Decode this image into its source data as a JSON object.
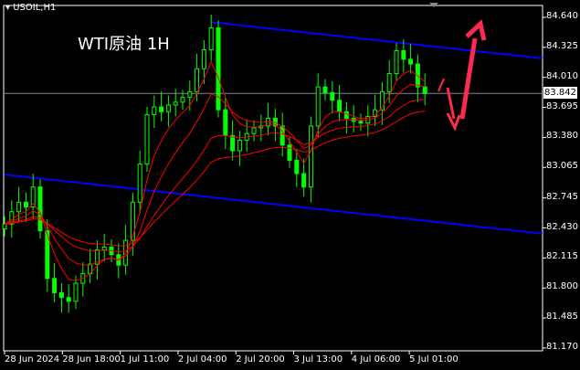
{
  "header": {
    "symbol": "USOIL,H1"
  },
  "chart_data": {
    "type": "candlestick",
    "title": "WTI原油 1H",
    "ylim": [
      81.17,
      84.8
    ],
    "yticks": [
      "84.640",
      "84.325",
      "84.010",
      "83.695",
      "83.380",
      "83.065",
      "82.745",
      "82.430",
      "82.115",
      "81.800",
      "81.485",
      "81.170"
    ],
    "xticks": [
      "28 Jun 2024",
      "28 Jun 18:00",
      "1 Jul 11:00",
      "2 Jul 04:00",
      "2 Jul 20:00",
      "3 Jul 13:00",
      "4 Jul 06:00",
      "5 Jul 01:00"
    ],
    "current_price": "83.842",
    "closes": [
      82.47,
      82.6,
      82.7,
      82.65,
      82.86,
      82.4,
      81.9,
      81.75,
      81.7,
      81.66,
      81.85,
      81.95,
      82.05,
      82.2,
      82.23,
      82.15,
      82.04,
      82.3,
      82.7,
      83.1,
      83.62,
      83.7,
      83.65,
      83.72,
      83.75,
      83.8,
      83.86,
      84.1,
      84.3,
      84.53,
      83.67,
      83.4,
      83.24,
      83.35,
      83.42,
      83.48,
      83.5,
      83.58,
      83.5,
      83.3,
      83.14,
      83.0,
      82.86,
      83.5,
      83.91,
      83.85,
      83.77,
      83.65,
      83.58,
      83.55,
      83.53,
      83.6,
      83.67,
      83.86,
      84.05,
      84.29,
      84.2,
      84.15,
      83.91,
      83.84
    ],
    "moving_averages": [
      5,
      10,
      20,
      30
    ],
    "trendlines": [
      {
        "from": [
          29,
          84.59
        ],
        "to": [
          75.5,
          84.21
        ]
      },
      {
        "from": [
          0,
          82.99
        ],
        "to": [
          75.5,
          82.37
        ]
      }
    ],
    "colors": {
      "bull": "#00ff00",
      "bear": "#00ff00",
      "ma": "#ff0000",
      "trend": "#0000ff",
      "arrow": "#ff2a4f",
      "grid": "#ffffff",
      "price_line": "#778899"
    }
  }
}
